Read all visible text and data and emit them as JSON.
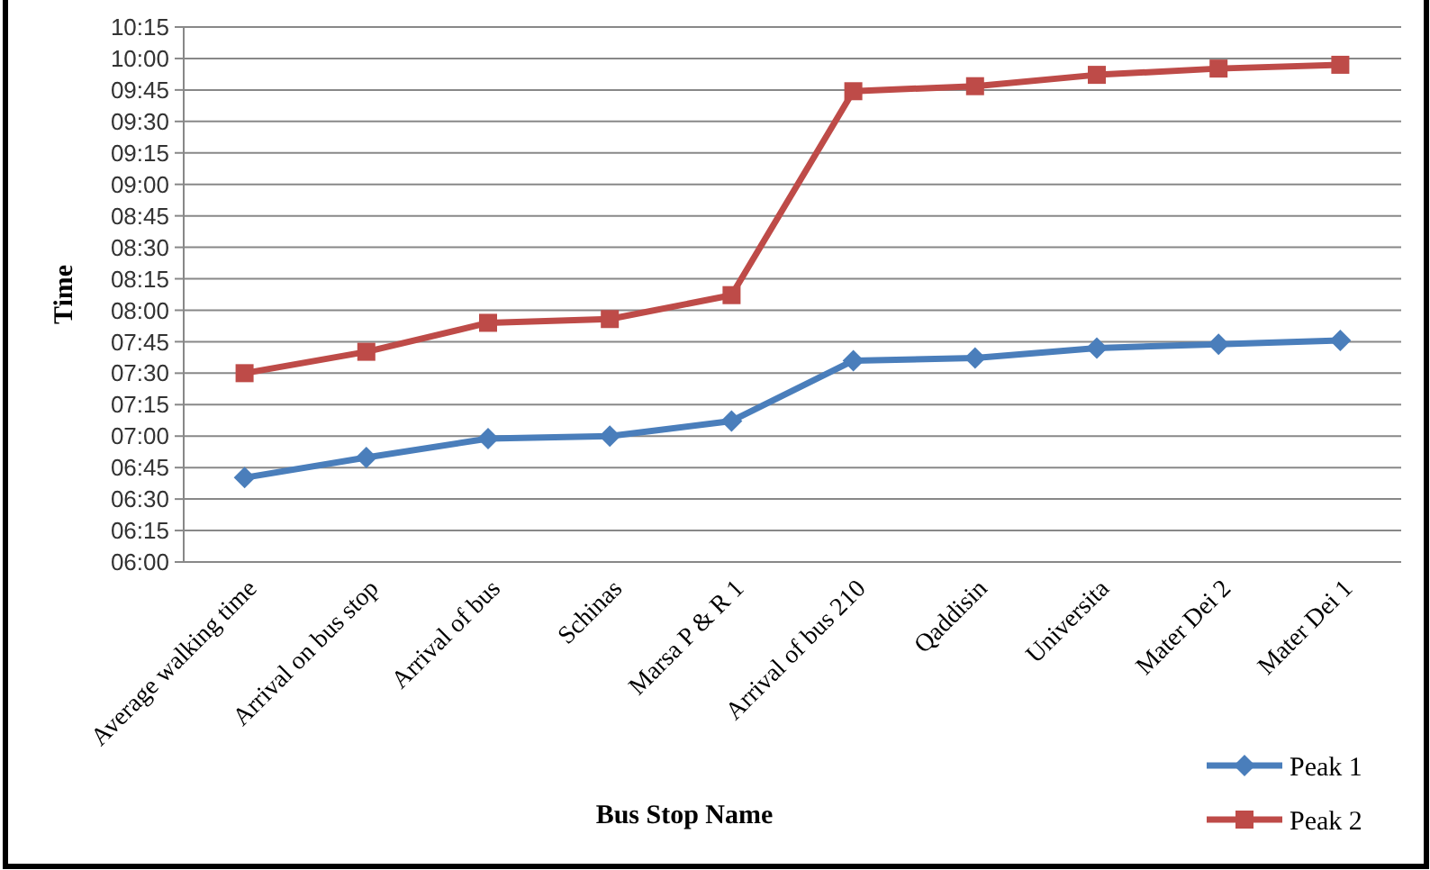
{
  "chart_data": {
    "type": "line",
    "xlabel": "Bus Stop Name",
    "ylabel": "Time",
    "categories": [
      "Average walking time",
      "Arrival on bus stop",
      "Arrival of bus",
      "Schinas",
      "Marsa P & R 1",
      "Arrival of bus 210",
      "Qaddisin",
      "Universita",
      "Mater Dei 2",
      "Mater Dei 1"
    ],
    "series": [
      {
        "name": "Peak 1",
        "color": "#4a7ebb",
        "marker": "diamond",
        "values": [
          6.67,
          6.83,
          6.98,
          7.0,
          7.12,
          7.6,
          7.62,
          7.7,
          7.73,
          7.76
        ]
      },
      {
        "name": "Peak 2",
        "color": "#be4b48",
        "marker": "square",
        "values": [
          7.5,
          7.67,
          7.9,
          7.93,
          8.12,
          9.74,
          9.78,
          9.87,
          9.92,
          9.95
        ]
      }
    ],
    "ylim": [
      6,
      10.25
    ],
    "yticks": [
      {
        "value": 6,
        "label": "06:00"
      },
      {
        "value": 6.25,
        "label": "06:15"
      },
      {
        "value": 6.5,
        "label": "06:30"
      },
      {
        "value": 6.75,
        "label": "06:45"
      },
      {
        "value": 7,
        "label": "07:00"
      },
      {
        "value": 7.25,
        "label": "07:15"
      },
      {
        "value": 7.5,
        "label": "07:30"
      },
      {
        "value": 7.75,
        "label": "07:45"
      },
      {
        "value": 8,
        "label": "08:00"
      },
      {
        "value": 8.25,
        "label": "08:15"
      },
      {
        "value": 8.5,
        "label": "08:30"
      },
      {
        "value": 8.75,
        "label": "08:45"
      },
      {
        "value": 9,
        "label": "09:00"
      },
      {
        "value": 9.25,
        "label": "09:15"
      },
      {
        "value": 9.5,
        "label": "09:30"
      },
      {
        "value": 9.75,
        "label": "09:45"
      },
      {
        "value": 10,
        "label": "10:00"
      },
      {
        "value": 10.25,
        "label": "10:15"
      }
    ],
    "grid": "y",
    "legend": "bottom right",
    "line_style": "solid"
  }
}
